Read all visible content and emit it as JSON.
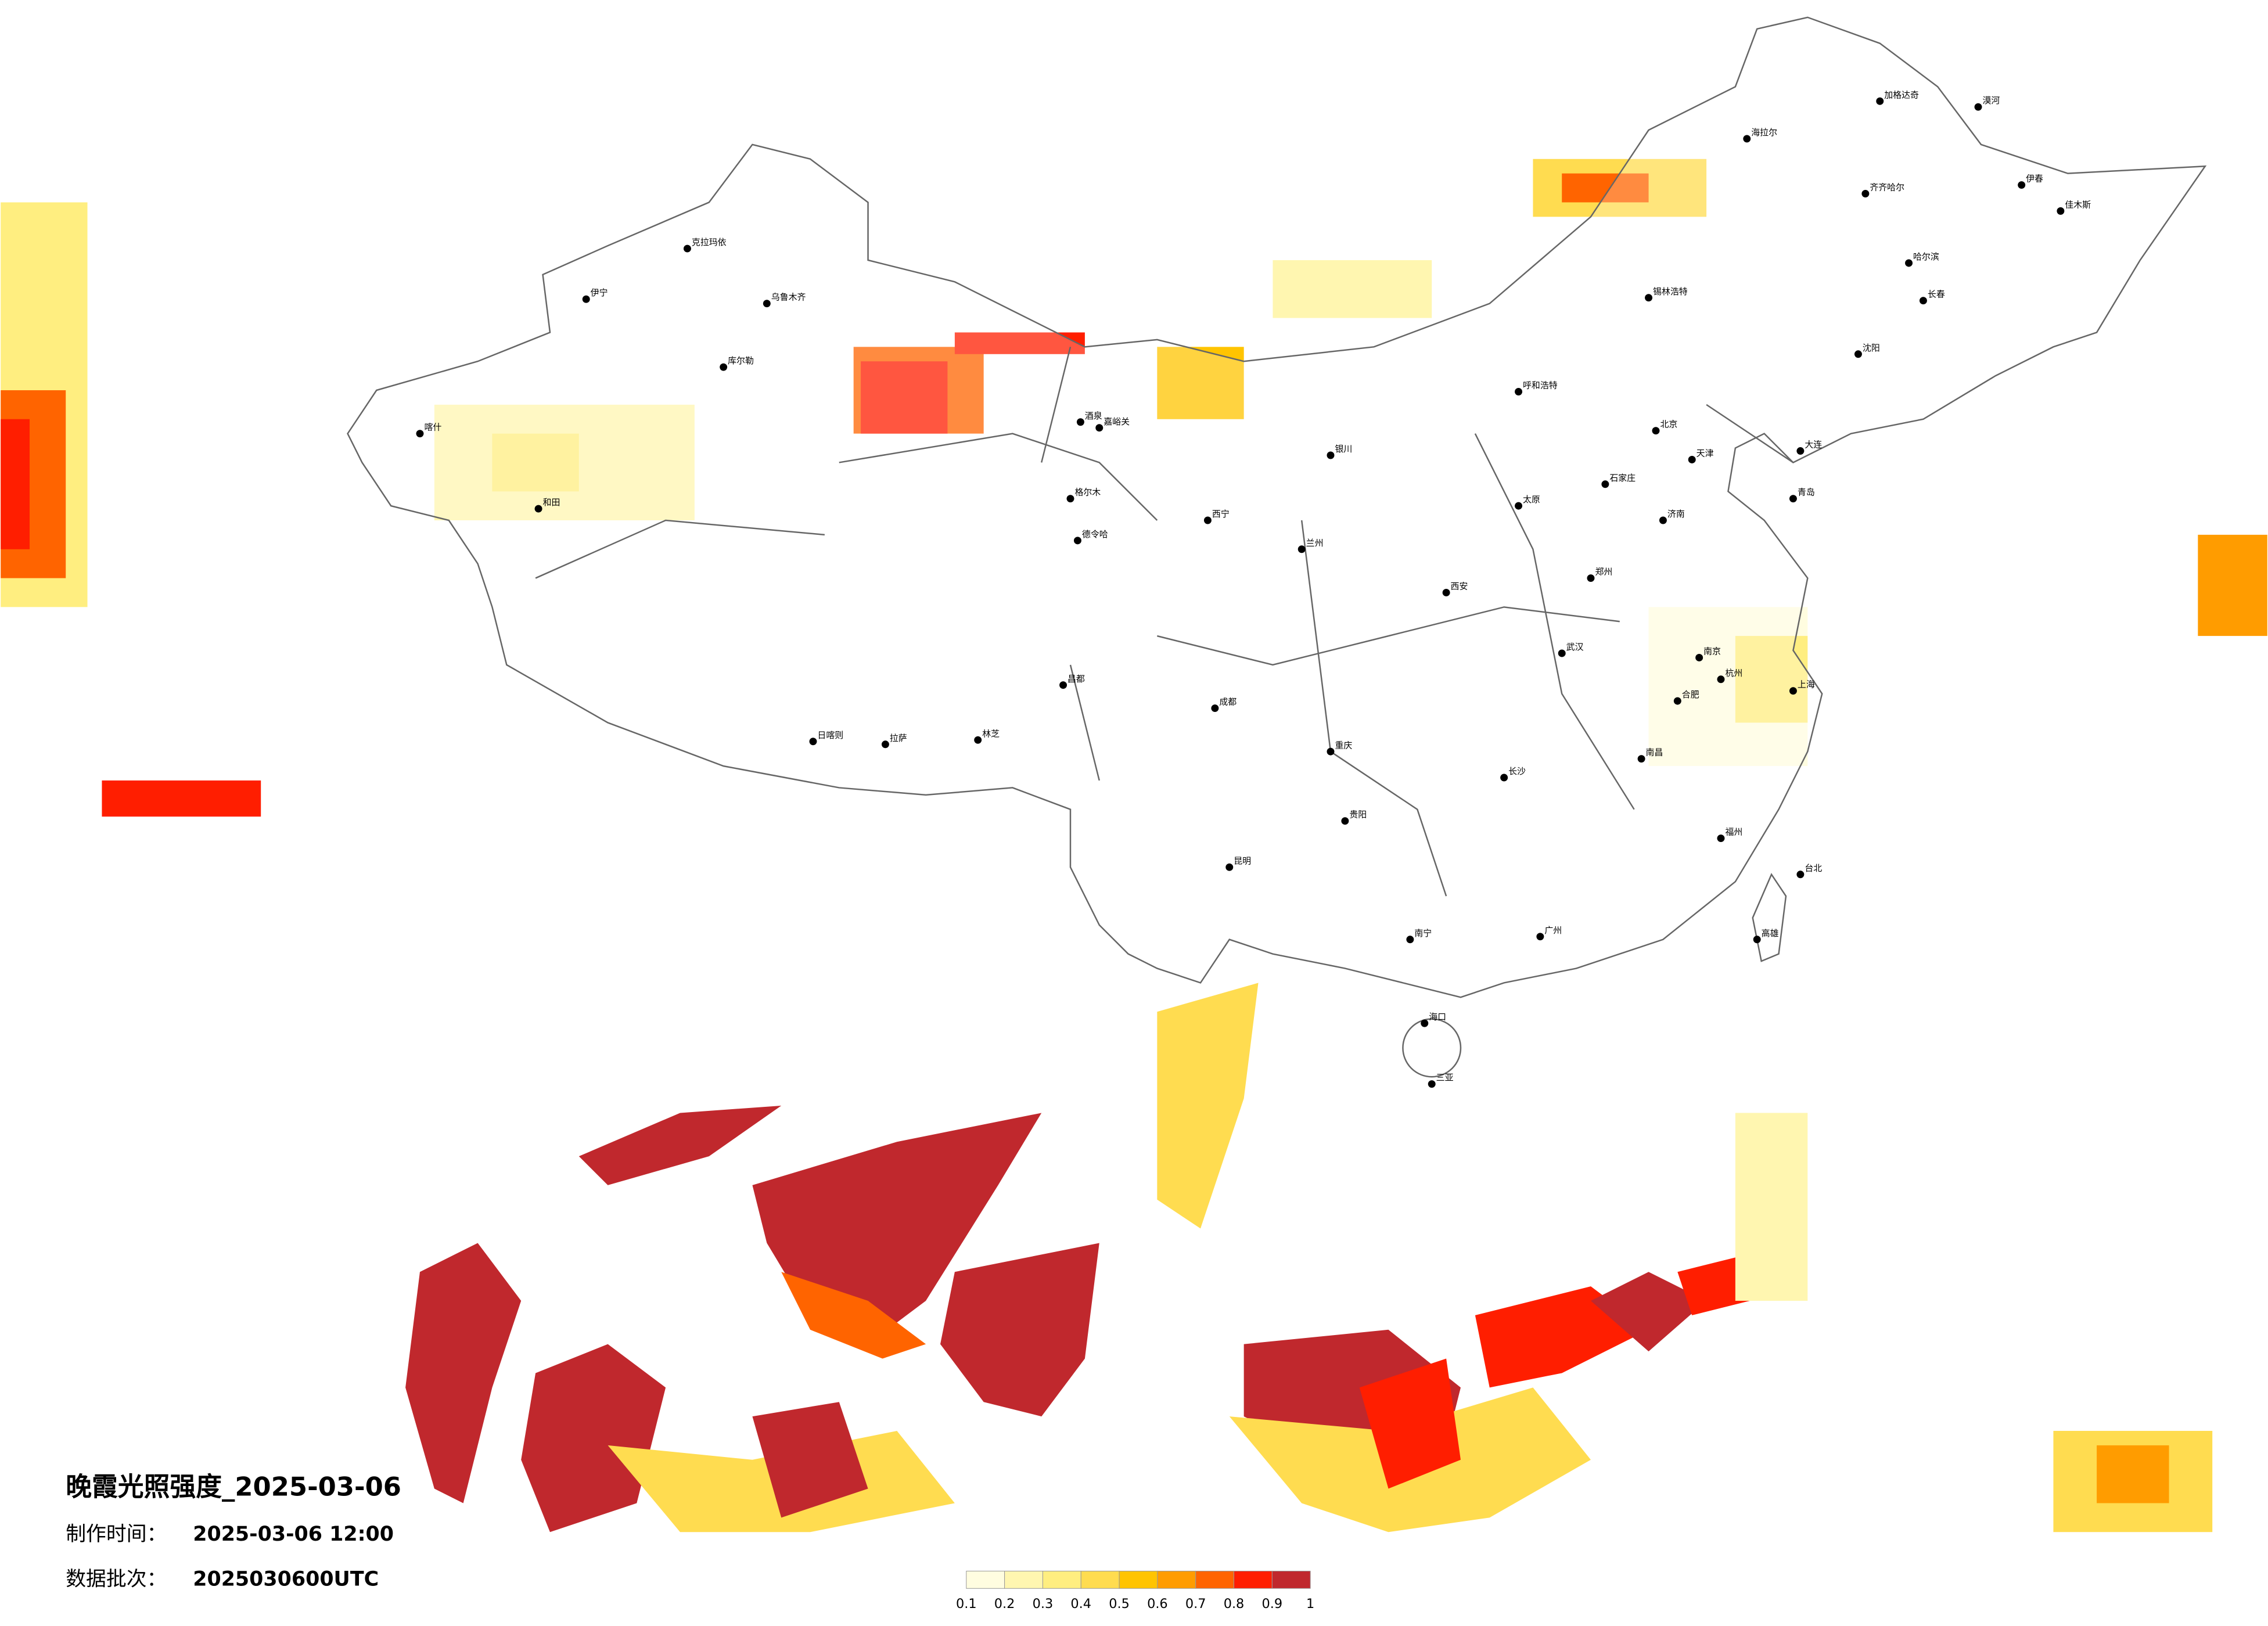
{
  "header": {
    "title": "晚霞光照强度_2025-03-06",
    "made_label": "制作时间：",
    "made_time": "2025-03-06 12:00",
    "batch_label": "数据批次：",
    "batch": "2025030600UTC"
  },
  "legend": {
    "colors": [
      "#fffde0",
      "#fff6b0",
      "#ffee80",
      "#ffdc50",
      "#ffc400",
      "#ff9c00",
      "#ff6400",
      "#ff1e00",
      "#c0282d"
    ],
    "ticks": [
      0.1,
      0.2,
      0.3,
      0.4,
      0.5,
      0.6,
      0.7,
      0.8,
      0.9,
      1
    ]
  },
  "cities": [
    "漠河",
    "加格达奇",
    "海拉尔",
    "齐齐哈尔",
    "哈尔滨",
    "伊春",
    "佳木斯",
    "长春",
    "沈阳",
    "大连",
    "锡林浩特",
    "呼和浩特",
    "北京",
    "天津",
    "石家庄",
    "太原",
    "济南",
    "青岛",
    "郑州",
    "西安",
    "兰州",
    "西宁",
    "银川",
    "乌鲁木齐",
    "克拉玛依",
    "伊宁",
    "库尔勒",
    "喀什",
    "和田",
    "格尔木",
    "拉萨",
    "日喀则",
    "林芝",
    "昌都",
    "成都",
    "重庆",
    "贵阳",
    "昆明",
    "南宁",
    "广州",
    "海口",
    "三亚",
    "长沙",
    "武汉",
    "南昌",
    "福州",
    "杭州",
    "上海",
    "南京",
    "合肥",
    "台北",
    "高雄",
    "德令哈",
    "酒泉",
    "嘉峪关"
  ]
}
